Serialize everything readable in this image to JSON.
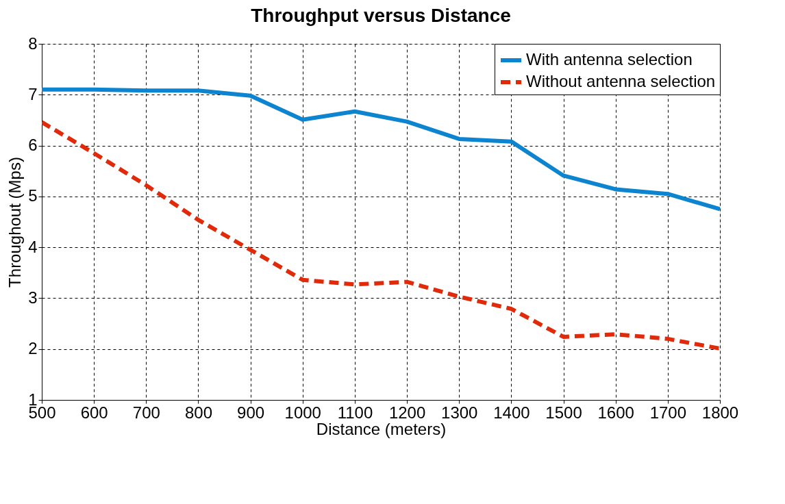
{
  "chart_data": {
    "type": "line",
    "title": "Throughput versus Distance",
    "xlabel": "Distance (meters)",
    "ylabel": "Throughout (Mps)",
    "x": [
      500,
      600,
      700,
      800,
      900,
      1000,
      1100,
      1200,
      1300,
      1400,
      1500,
      1600,
      1700,
      1800
    ],
    "xlim": [
      500,
      1800
    ],
    "xticks": [
      500,
      600,
      700,
      800,
      900,
      1000,
      1100,
      1200,
      1300,
      1400,
      1500,
      1600,
      1700,
      1800
    ],
    "ylim": [
      1,
      8
    ],
    "yticks": [
      1,
      2,
      3,
      4,
      5,
      6,
      7,
      8
    ],
    "grid": true,
    "legend": "top right",
    "marker": "none",
    "series": [
      {
        "name": "With antenna selection",
        "color": "#0d84cf",
        "line_style": "solid",
        "values": [
          7.1,
          7.1,
          7.08,
          7.08,
          6.98,
          6.51,
          6.67,
          6.47,
          6.13,
          6.08,
          5.41,
          5.14,
          5.05,
          4.75
        ]
      },
      {
        "name": "Without antenna selection",
        "color": "#e02a0a",
        "line_style": "dashed",
        "values": [
          6.46,
          5.85,
          5.22,
          4.54,
          3.95,
          3.36,
          3.27,
          3.32,
          3.03,
          2.79,
          2.24,
          2.29,
          2.2,
          2.01
        ]
      }
    ]
  }
}
